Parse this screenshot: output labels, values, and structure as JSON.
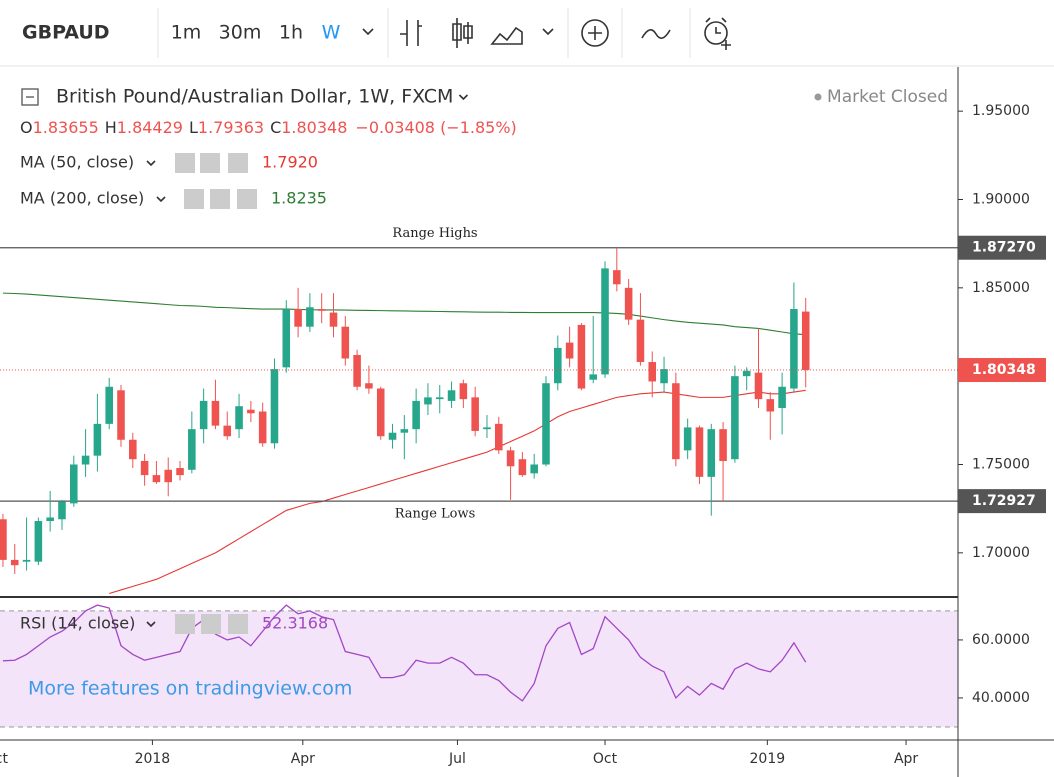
{
  "toolbar": {
    "symbol": "GBPAUD",
    "intervals": [
      "1m",
      "30m",
      "1h",
      "W"
    ]
  },
  "chart_data": {
    "type": "candlestick",
    "title": "British Pound/Australian Dollar, 1W, FXCM",
    "status": "Market Closed",
    "ohlc_legend": [
      [
        "O",
        "1.83655"
      ],
      [
        "H",
        "1.84429"
      ],
      [
        "L",
        "1.79363"
      ],
      [
        "C",
        "1.80348"
      ]
    ],
    "change": "−0.03408 (−1.85%)",
    "up_color": "#26a68a",
    "down_color": "#ef5350",
    "open": [
      1.719,
      1.696,
      1.695,
      1.695,
      1.718,
      1.719,
      1.728,
      1.75,
      1.755,
      1.773,
      1.792,
      1.764,
      1.752,
      1.744,
      1.747,
      1.748,
      1.747,
      1.77,
      1.786,
      1.772,
      1.77,
      1.781,
      1.78,
      1.762,
      1.805,
      1.838,
      1.828,
      1.838,
      1.836,
      1.828,
      1.812,
      1.796,
      1.793,
      1.764,
      1.768,
      1.77,
      1.784,
      1.787,
      1.786,
      1.796,
      1.788,
      1.77,
      1.773,
      1.758,
      1.753,
      1.745,
      1.75,
      1.796,
      1.819,
      1.829,
      1.798,
      1.801,
      1.86,
      1.85,
      1.832,
      1.808,
      1.796,
      1.796,
      1.758,
      1.771,
      1.743,
      1.77,
      1.753,
      1.8,
      1.802,
      1.787,
      1.782,
      1.793,
      1.83655
    ],
    "high": [
      1.722,
      1.705,
      1.72,
      1.72,
      1.735,
      1.73,
      1.755,
      1.77,
      1.79,
      1.799,
      1.795,
      1.768,
      1.756,
      1.752,
      1.754,
      1.752,
      1.78,
      1.793,
      1.798,
      1.78,
      1.79,
      1.786,
      1.785,
      1.81,
      1.843,
      1.85,
      1.847,
      1.847,
      1.847,
      1.834,
      1.815,
      1.806,
      1.794,
      1.773,
      1.778,
      1.793,
      1.796,
      1.795,
      1.797,
      1.798,
      1.794,
      1.778,
      1.777,
      1.76,
      1.757,
      1.756,
      1.8,
      1.823,
      1.828,
      1.83,
      1.834,
      1.865,
      1.8727,
      1.855,
      1.847,
      1.814,
      1.811,
      1.802,
      1.776,
      1.772,
      1.773,
      1.774,
      1.806,
      1.805,
      1.827,
      1.791,
      1.802,
      1.853,
      1.84429
    ],
    "low": [
      1.692,
      1.688,
      1.69,
      1.693,
      1.712,
      1.713,
      1.726,
      1.743,
      1.746,
      1.77,
      1.76,
      1.748,
      1.738,
      1.739,
      1.732,
      1.741,
      1.745,
      1.762,
      1.77,
      1.764,
      1.765,
      1.774,
      1.76,
      1.759,
      1.802,
      1.822,
      1.825,
      1.83,
      1.822,
      1.806,
      1.792,
      1.79,
      1.764,
      1.759,
      1.753,
      1.762,
      1.778,
      1.779,
      1.782,
      1.782,
      1.766,
      1.765,
      1.756,
      1.73,
      1.743,
      1.742,
      1.749,
      1.792,
      1.805,
      1.792,
      1.796,
      1.799,
      1.848,
      1.829,
      1.806,
      1.788,
      1.791,
      1.749,
      1.753,
      1.739,
      1.721,
      1.729,
      1.751,
      1.792,
      1.782,
      1.764,
      1.767,
      1.791,
      1.79363
    ],
    "close": [
      1.696,
      1.693,
      1.696,
      1.718,
      1.72,
      1.729,
      1.75,
      1.755,
      1.773,
      1.794,
      1.764,
      1.753,
      1.744,
      1.74,
      1.74,
      1.744,
      1.77,
      1.786,
      1.772,
      1.766,
      1.783,
      1.779,
      1.762,
      1.804,
      1.838,
      1.828,
      1.839,
      1.837,
      1.828,
      1.81,
      1.794,
      1.793,
      1.766,
      1.768,
      1.77,
      1.786,
      1.788,
      1.788,
      1.792,
      1.787,
      1.769,
      1.771,
      1.758,
      1.749,
      1.744,
      1.75,
      1.796,
      1.816,
      1.81,
      1.793,
      1.801,
      1.861,
      1.852,
      1.832,
      1.808,
      1.797,
      1.804,
      1.753,
      1.771,
      1.743,
      1.77,
      1.752,
      1.8,
      1.803,
      1.787,
      1.78,
      1.794,
      1.838,
      1.80348
    ],
    "series": [
      {
        "name": "MA (50, close)",
        "color": "#e53935",
        "value_label": "1.7920",
        "values": [
          null,
          null,
          null,
          null,
          null,
          null,
          null,
          null,
          null,
          1.677,
          1.679,
          1.681,
          1.683,
          1.685,
          1.688,
          1.691,
          1.694,
          1.697,
          1.7,
          1.704,
          1.708,
          1.712,
          1.716,
          1.72,
          1.724,
          1.726,
          1.728,
          1.729,
          1.731,
          1.733,
          1.735,
          1.737,
          1.739,
          1.741,
          1.743,
          1.745,
          1.747,
          1.749,
          1.751,
          1.753,
          1.755,
          1.757,
          1.76,
          1.763,
          1.766,
          1.769,
          1.773,
          1.777,
          1.78,
          1.782,
          1.784,
          1.786,
          1.788,
          1.789,
          1.79,
          1.7905,
          1.791,
          1.79,
          1.789,
          1.788,
          1.788,
          1.788,
          1.789,
          1.79,
          1.791,
          1.79,
          1.79,
          1.791,
          1.792
        ]
      },
      {
        "name": "MA (200, close)",
        "color": "#2e7d32",
        "value_label": "1.8235",
        "values": [
          1.847,
          1.8468,
          1.8465,
          1.846,
          1.8455,
          1.845,
          1.8445,
          1.844,
          1.8435,
          1.843,
          1.8425,
          1.842,
          1.8415,
          1.841,
          1.8405,
          1.84,
          1.8398,
          1.8395,
          1.839,
          1.8388,
          1.8385,
          1.8382,
          1.838,
          1.838,
          1.838,
          1.8378,
          1.8376,
          1.8375,
          1.8375,
          1.8374,
          1.8373,
          1.8372,
          1.8371,
          1.837,
          1.8369,
          1.8368,
          1.8367,
          1.8366,
          1.8365,
          1.8364,
          1.8363,
          1.8362,
          1.8362,
          1.8361,
          1.8361,
          1.836,
          1.836,
          1.836,
          1.836,
          1.836,
          1.836,
          1.8358,
          1.8355,
          1.835,
          1.834,
          1.833,
          1.832,
          1.8312,
          1.8305,
          1.83,
          1.8295,
          1.829,
          1.828,
          1.8275,
          1.827,
          1.826,
          1.825,
          1.824,
          1.8235
        ]
      }
    ],
    "xlim": [
      -0.25,
      80.9
    ],
    "xticks": [
      {
        "value": -0.6,
        "label": "Oct"
      },
      {
        "value": 12.66,
        "label": "2018"
      },
      {
        "value": 25.4,
        "label": "Apr"
      },
      {
        "value": 38.5,
        "label": "Jul"
      },
      {
        "value": 51.0,
        "label": "Oct"
      },
      {
        "value": 64.75,
        "label": "2019"
      },
      {
        "value": 76.5,
        "label": "Apr"
      }
    ],
    "ylim": [
      1.675,
      1.975
    ],
    "yticks": [
      {
        "value": 1.95,
        "label": "1.95000"
      },
      {
        "value": 1.9,
        "label": "1.90000"
      },
      {
        "value": 1.85,
        "label": "1.85000"
      },
      {
        "value": 1.75,
        "label": "1.75000"
      },
      {
        "value": 1.7,
        "label": "1.70000"
      }
    ],
    "hlines": [
      {
        "value": 1.8727,
        "label": "1.87270",
        "annotation": "Range Highs",
        "color": "#555555"
      },
      {
        "value": 1.72927,
        "label": "1.72927",
        "annotation": "Range Lows",
        "color": "#555555"
      }
    ],
    "last_price": {
      "value": 1.80348,
      "label": "1.80348",
      "color": "#ef5350"
    },
    "rsi": {
      "name": "RSI (14, close)",
      "value_label": "52.3168",
      "color": "#a347c4",
      "values": [
        52.8,
        53,
        55,
        58,
        61,
        63,
        66,
        70,
        72,
        71,
        58,
        55,
        53,
        54,
        55,
        56,
        64,
        67,
        62,
        60,
        61,
        58,
        63,
        68,
        72,
        69,
        70,
        68,
        67,
        56,
        55,
        54,
        47,
        47,
        48,
        53,
        52,
        52,
        54,
        52,
        48,
        48,
        46,
        42,
        39,
        45,
        58,
        64,
        66,
        55,
        57,
        68,
        64,
        60,
        54,
        51,
        49,
        40,
        44,
        41,
        45,
        43,
        50,
        52,
        50,
        49,
        53,
        59,
        52.3168
      ],
      "ylim": [
        25.5,
        74.8
      ],
      "yticks": [
        {
          "value": 60,
          "label": "60.0000"
        },
        {
          "value": 40,
          "label": "40.0000"
        }
      ],
      "bands": [
        30,
        70
      ]
    },
    "watermark": "More features on tradingview.com"
  }
}
